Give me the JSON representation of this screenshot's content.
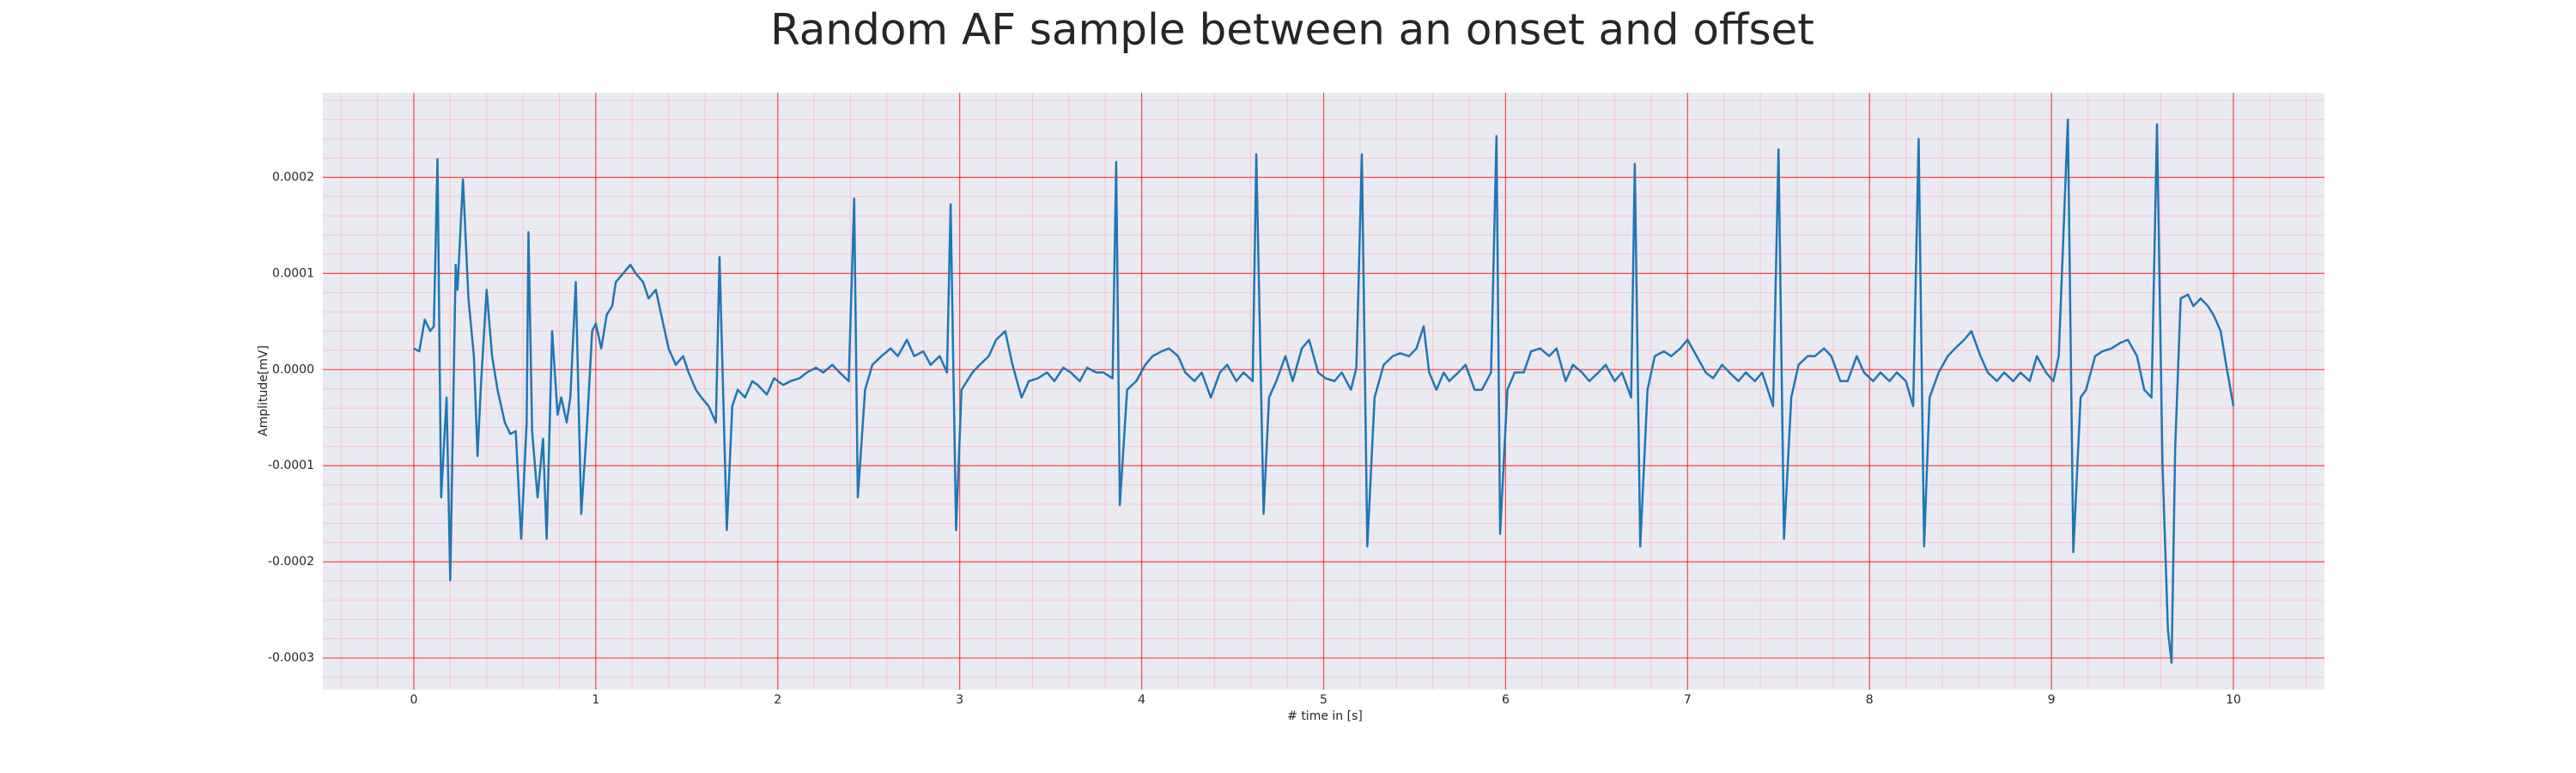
{
  "chart_data": {
    "type": "line",
    "title": "Random AF sample between an onset and offset",
    "x_label": "# time in [s]",
    "y_label": "Amplitude[mV]",
    "color": "#1f77b4",
    "background": "#eaeaf2",
    "grid": true,
    "grid_color": "#ff0000",
    "minor_grid": true,
    "minor_grid_color": "#ffb6c1",
    "xlim": [
      -0.5,
      10.5
    ],
    "ylim": [
      -0.000333,
      0.000288
    ],
    "xticks": [
      0,
      1,
      2,
      3,
      4,
      5,
      6,
      7,
      8,
      9,
      10
    ],
    "yticks": [
      0.0002,
      0.0001,
      {
        "value": 0,
        "label": "0.0000"
      },
      -0.0001,
      -0.0002,
      -0.0003
    ],
    "x": [
      0,
      0.03,
      0.06,
      0.09,
      0.11,
      0.13,
      0.15,
      0.18,
      0.2,
      0.23,
      0.24,
      0.27,
      0.3,
      0.33,
      0.35,
      0.37,
      0.4,
      0.43,
      0.46,
      0.5,
      0.53,
      0.56,
      0.59,
      0.62,
      0.63,
      0.65,
      0.68,
      0.71,
      0.73,
      0.76,
      0.79,
      0.81,
      0.84,
      0.86,
      0.89,
      0.92,
      0.95,
      0.98,
      1.0,
      1.03,
      1.06,
      1.09,
      1.11,
      1.15,
      1.19,
      1.22,
      1.26,
      1.29,
      1.33,
      1.37,
      1.4,
      1.44,
      1.48,
      1.51,
      1.55,
      1.58,
      1.62,
      1.66,
      1.68,
      1.72,
      1.75,
      1.78,
      1.82,
      1.86,
      1.89,
      1.94,
      1.98,
      2.03,
      2.07,
      2.12,
      2.16,
      2.21,
      2.25,
      2.3,
      2.34,
      2.39,
      2.42,
      2.44,
      2.48,
      2.52,
      2.57,
      2.62,
      2.66,
      2.71,
      2.75,
      2.8,
      2.84,
      2.89,
      2.93,
      2.95,
      2.98,
      3.01,
      3.07,
      3.11,
      3.16,
      3.2,
      3.25,
      3.29,
      3.34,
      3.38,
      3.43,
      3.48,
      3.52,
      3.57,
      3.61,
      3.66,
      3.7,
      3.75,
      3.79,
      3.84,
      3.86,
      3.88,
      3.92,
      3.97,
      4.02,
      4.06,
      4.11,
      4.15,
      4.2,
      4.24,
      4.29,
      4.33,
      4.38,
      4.43,
      4.47,
      4.52,
      4.56,
      4.61,
      4.63,
      4.67,
      4.7,
      4.74,
      4.79,
      4.83,
      4.88,
      4.92,
      4.97,
      5.01,
      5.06,
      5.1,
      5.15,
      5.18,
      5.21,
      5.24,
      5.28,
      5.33,
      5.38,
      5.42,
      5.47,
      5.51,
      5.55,
      5.58,
      5.62,
      5.66,
      5.69,
      5.74,
      5.78,
      5.83,
      5.87,
      5.92,
      5.95,
      5.97,
      6.01,
      6.05,
      6.1,
      6.14,
      6.19,
      6.24,
      6.28,
      6.33,
      6.37,
      6.42,
      6.46,
      6.51,
      6.55,
      6.6,
      6.64,
      6.69,
      6.71,
      6.74,
      6.78,
      6.82,
      6.87,
      6.91,
      6.96,
      7.0,
      7.05,
      7.1,
      7.14,
      7.19,
      7.23,
      7.28,
      7.32,
      7.37,
      7.41,
      7.47,
      7.5,
      7.53,
      7.57,
      7.61,
      7.66,
      7.7,
      7.75,
      7.79,
      7.84,
      7.88,
      7.93,
      7.97,
      8.02,
      8.06,
      8.11,
      8.15,
      8.2,
      8.24,
      8.27,
      8.3,
      8.33,
      8.38,
      8.43,
      8.47,
      8.52,
      8.56,
      8.61,
      8.65,
      8.7,
      8.74,
      8.79,
      8.83,
      8.88,
      8.92,
      8.97,
      9.01,
      9.04,
      9.09,
      9.12,
      9.16,
      9.19,
      9.24,
      9.28,
      9.33,
      9.38,
      9.42,
      9.47,
      9.51,
      9.55,
      9.58,
      9.61,
      9.64,
      9.66,
      9.68,
      9.71,
      9.75,
      9.78,
      9.82,
      9.86,
      9.89,
      9.93,
      9.96,
      10.0
    ],
    "values": [
      2.2e-05,
      1.9e-05,
      5.2e-05,
      4e-05,
      4.5e-05,
      0.000219,
      -0.000133,
      -2.9e-05,
      -0.000219,
      0.000109,
      8.3e-05,
      0.000198,
      7.4e-05,
      1.4e-05,
      -9e-05,
      -1.2e-05,
      8.3e-05,
      1.4e-05,
      -2.1e-05,
      -5.5e-05,
      -6.7e-05,
      -6.4e-05,
      -0.000176,
      -5.5e-05,
      0.000143,
      -6.4e-05,
      -0.000133,
      -7.2e-05,
      -0.000176,
      4e-05,
      -4.7e-05,
      -2.9e-05,
      -5.5e-05,
      -2.9e-05,
      9.1e-05,
      -0.00015,
      -6.4e-05,
      4e-05,
      4.8e-05,
      2.2e-05,
      5.7e-05,
      6.6e-05,
      9.1e-05,
      0.0001,
      0.000109,
      0.0001,
      9.1e-05,
      7.4e-05,
      8.3e-05,
      4.8e-05,
      2.2e-05,
      5e-06,
      1.4e-05,
      -3e-06,
      -2.1e-05,
      -2.9e-05,
      -3.8e-05,
      -5.5e-05,
      0.000117,
      -0.000167,
      -3.8e-05,
      -2.1e-05,
      -2.9e-05,
      -1.2e-05,
      -1.6e-05,
      -2.6e-05,
      -9e-06,
      -1.6e-05,
      -1.2e-05,
      -9e-06,
      -3e-06,
      2e-06,
      -3e-06,
      5e-06,
      -3e-06,
      -1.2e-05,
      0.000178,
      -0.000133,
      -2.1e-05,
      5e-06,
      1.4e-05,
      2.2e-05,
      1.4e-05,
      3.1e-05,
      1.4e-05,
      1.9e-05,
      5e-06,
      1.4e-05,
      -3e-06,
      0.000172,
      -0.000167,
      -2.1e-05,
      -3e-06,
      5e-06,
      1.4e-05,
      3.1e-05,
      4e-05,
      5e-06,
      -2.9e-05,
      -1.2e-05,
      -9e-06,
      -3e-06,
      -1.2e-05,
      2e-06,
      -3e-06,
      -1.2e-05,
      2e-06,
      -3e-06,
      -3e-06,
      -9e-06,
      0.000216,
      -0.000141,
      -2.1e-05,
      -1.2e-05,
      5e-06,
      1.4e-05,
      1.9e-05,
      2.2e-05,
      1.4e-05,
      -3e-06,
      -1.2e-05,
      -3e-06,
      -2.9e-05,
      -3e-06,
      5e-06,
      -1.2e-05,
      -3e-06,
      -1.2e-05,
      0.000224,
      -0.00015,
      -2.9e-05,
      -1.2e-05,
      1.4e-05,
      -1.2e-05,
      2.2e-05,
      3.1e-05,
      -3e-06,
      -9e-06,
      -1.2e-05,
      -3e-06,
      -2.1e-05,
      2e-06,
      0.000224,
      -0.000184,
      -2.9e-05,
      5e-06,
      1.4e-05,
      1.7e-05,
      1.4e-05,
      2.2e-05,
      4.5e-05,
      -3e-06,
      -2.1e-05,
      -3e-06,
      -1.2e-05,
      -3e-06,
      5e-06,
      -2.1e-05,
      -2.1e-05,
      -3e-06,
      0.000243,
      -0.000171,
      -2.1e-05,
      -3e-06,
      -3e-06,
      1.9e-05,
      2.2e-05,
      1.4e-05,
      2.2e-05,
      -1.2e-05,
      5e-06,
      -3e-06,
      -1.2e-05,
      -3e-06,
      5e-06,
      -1.2e-05,
      -3e-06,
      -2.9e-05,
      0.000214,
      -0.000184,
      -2.1e-05,
      1.4e-05,
      1.9e-05,
      1.4e-05,
      2.2e-05,
      3.1e-05,
      1.4e-05,
      -3e-06,
      -9e-06,
      5e-06,
      -3e-06,
      -1.2e-05,
      -3e-06,
      -1.2e-05,
      -3e-06,
      -3.8e-05,
      0.000229,
      -0.000176,
      -2.9e-05,
      5e-06,
      1.4e-05,
      1.4e-05,
      2.2e-05,
      1.4e-05,
      -1.2e-05,
      -1.2e-05,
      1.4e-05,
      -3e-06,
      -1.2e-05,
      -3e-06,
      -1.2e-05,
      -3e-06,
      -1.2e-05,
      -3.8e-05,
      0.00024,
      -0.000184,
      -2.9e-05,
      -3e-06,
      1.4e-05,
      2.2e-05,
      3.1e-05,
      4e-05,
      1.4e-05,
      -3e-06,
      -1.2e-05,
      -3e-06,
      -1.2e-05,
      -3e-06,
      -1.2e-05,
      1.4e-05,
      -3e-06,
      -1.2e-05,
      1.4e-05,
      0.00026,
      -0.00019,
      -2.9e-05,
      -2.1e-05,
      1.4e-05,
      1.9e-05,
      2.2e-05,
      2.8e-05,
      3.1e-05,
      1.4e-05,
      -2.1e-05,
      -2.9e-05,
      0.000255,
      -9.8e-05,
      -0.000271,
      -0.000305,
      -8.1e-05,
      7.4e-05,
      7.8e-05,
      6.6e-05,
      7.4e-05,
      6.6e-05,
      5.7e-05,
      4e-05,
      5e-06,
      -3.8e-05
    ]
  }
}
